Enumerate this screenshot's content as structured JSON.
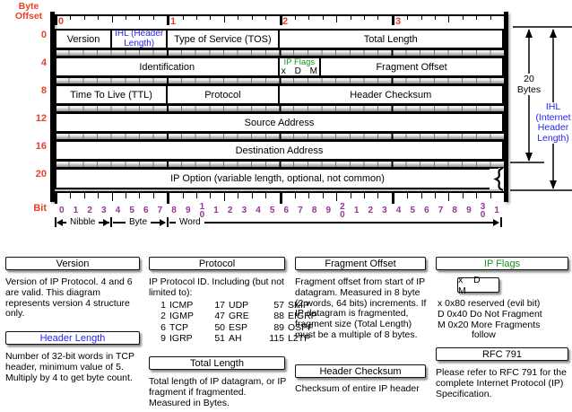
{
  "colors": {
    "red": "#e8402a",
    "purple": "#993399",
    "blue": "#2323ee",
    "green": "#169416"
  },
  "diagram": {
    "byte_offset_label": "Byte Offset",
    "bit_label": "Bit",
    "byte_numbers_top": [
      "0",
      "1",
      "2",
      "3"
    ],
    "byte_offsets": [
      "0",
      "4",
      "8",
      "12",
      "16",
      "20"
    ],
    "bit_numbers": [
      "0",
      "1",
      "2",
      "3",
      "4",
      "5",
      "6",
      "7",
      "8",
      "9",
      "10",
      "1",
      "2",
      "3",
      "4",
      "5",
      "6",
      "7",
      "8",
      "9",
      "20",
      "1",
      "2",
      "3",
      "4",
      "5",
      "6",
      "7",
      "8",
      "9",
      "30",
      "1"
    ],
    "scale": {
      "nibble": "Nibble",
      "byte": "Byte",
      "word": "Word"
    },
    "rows": [
      {
        "fields": [
          {
            "label": "Version"
          },
          {
            "label": "IHL (Header Length)"
          },
          {
            "label": "Type of Service (TOS)"
          },
          {
            "label": "Total Length"
          }
        ]
      },
      {
        "fields": [
          {
            "label": "Identification"
          },
          {
            "flags_title": "IP Flags",
            "flags_bits": "x D M"
          },
          {
            "label": "Fragment Offset"
          }
        ]
      },
      {
        "fields": [
          {
            "label": "Time To Live (TTL)"
          },
          {
            "label": "Protocol"
          },
          {
            "label": "Header Checksum"
          }
        ]
      },
      {
        "fields": [
          {
            "label": "Source Address"
          }
        ]
      },
      {
        "fields": [
          {
            "label": "Destination Address"
          }
        ]
      },
      {
        "fields": [
          {
            "label": "IP Option (variable length, optional, not common)"
          }
        ]
      }
    ],
    "annotations": {
      "bytes20": [
        "20",
        "Bytes"
      ],
      "ihl": [
        "IHL",
        "(Internet",
        "Header",
        "Length)"
      ]
    }
  },
  "legend": {
    "version": {
      "title": "Version",
      "body": "Version of IP Protocol.  4 and 6 are valid.  This diagram represents version 4 structure only."
    },
    "header_length": {
      "title": "Header Length",
      "body": "Number of 32-bit words in TCP header, minimum value of 5.  Multiply by 4 to get byte count."
    },
    "protocol": {
      "title": "Protocol",
      "intro": "IP Protocol ID.  Including (but not limited to):",
      "table": [
        [
          "1",
          "ICMP",
          "17",
          "UDP",
          "57",
          "SKIP"
        ],
        [
          "2",
          "IGMP",
          "47",
          "GRE",
          "88",
          "EIGRP"
        ],
        [
          "6",
          "TCP",
          "50",
          "ESP",
          "89",
          "OSPF"
        ],
        [
          "9",
          "IGRP",
          "51",
          "AH",
          "115",
          "L2TP"
        ]
      ]
    },
    "total_length": {
      "title": "Total Length",
      "body": "Total length of IP datagram, or IP fragment if fragmented. Measured in Bytes."
    },
    "fragment_offset": {
      "title": "Fragment Offset",
      "body": "Fragment offset from start of IP datagram.  Measured in 8 byte (2 words, 64 bits) increments.  If IP datagram is fragmented, fragment size (Total Length) must be a multiple of 8 bytes."
    },
    "header_checksum": {
      "title": "Header Checksum",
      "body": "Checksum of entire IP header"
    },
    "ip_flags": {
      "title": "IP Flags",
      "box": "x D M",
      "lines": [
        "x  0x80 reserved (evil bit)",
        "D  0x40 Do Not Fragment",
        "M  0x20 More Fragments",
        "follow"
      ]
    },
    "rfc": {
      "title": "RFC 791",
      "body": "Please refer to RFC 791 for the complete Internet Protocol (IP) Specification."
    }
  }
}
